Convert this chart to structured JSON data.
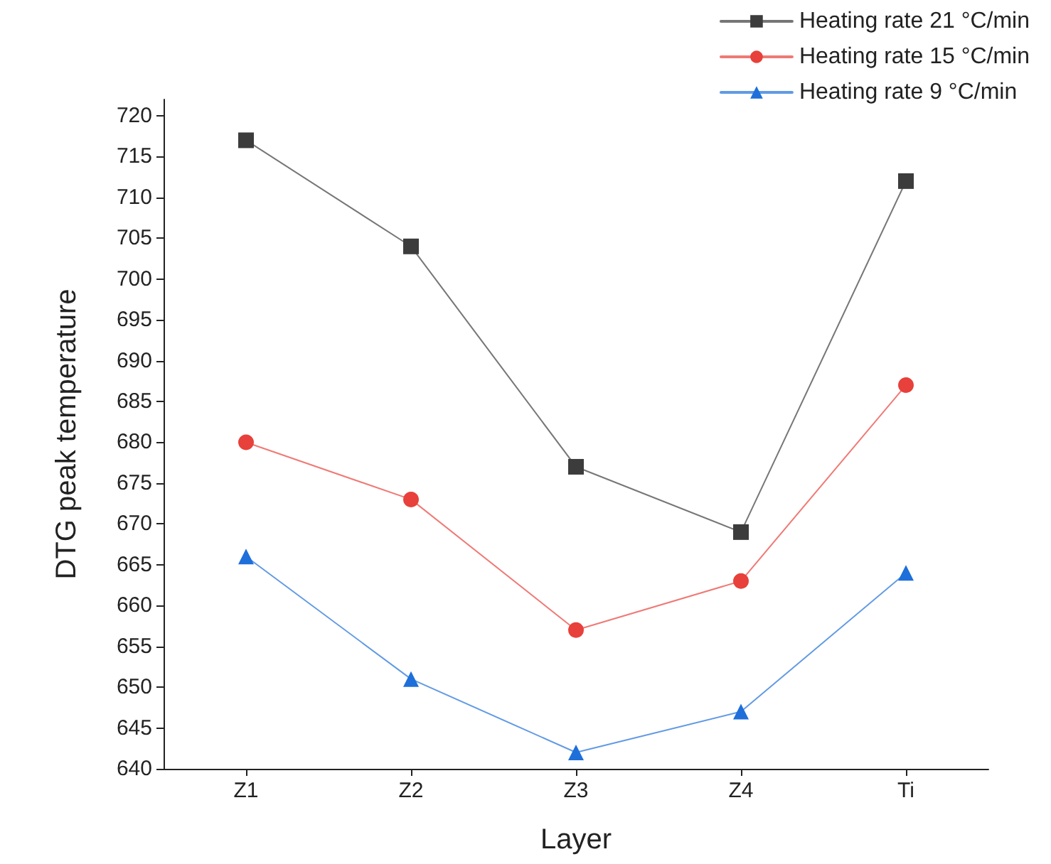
{
  "chart_data": {
    "type": "line",
    "xlabel": "Layer",
    "ylabel": "DTG peak temperature",
    "categories": [
      "Z1",
      "Z2",
      "Z3",
      "Z4",
      "Ti"
    ],
    "series": [
      {
        "name": "Heating rate 21 °C/min",
        "color": "#3c3c3c",
        "marker": "square",
        "values": [
          717,
          704,
          677,
          669,
          712
        ]
      },
      {
        "name": "Heating rate 15 °C/min",
        "color": "#e8403a",
        "marker": "circle",
        "values": [
          680,
          673,
          657,
          663,
          687
        ]
      },
      {
        "name": "Heating rate 9 °C/min",
        "color": "#1e6fd9",
        "marker": "triangle",
        "values": [
          666,
          651,
          642,
          647,
          664
        ]
      }
    ],
    "ylim": [
      640,
      722
    ],
    "yticks": [
      640,
      645,
      650,
      655,
      660,
      665,
      670,
      675,
      680,
      685,
      690,
      695,
      700,
      705,
      710,
      715,
      720
    ],
    "grid": false,
    "legend": "top right",
    "line_style": "solid"
  }
}
